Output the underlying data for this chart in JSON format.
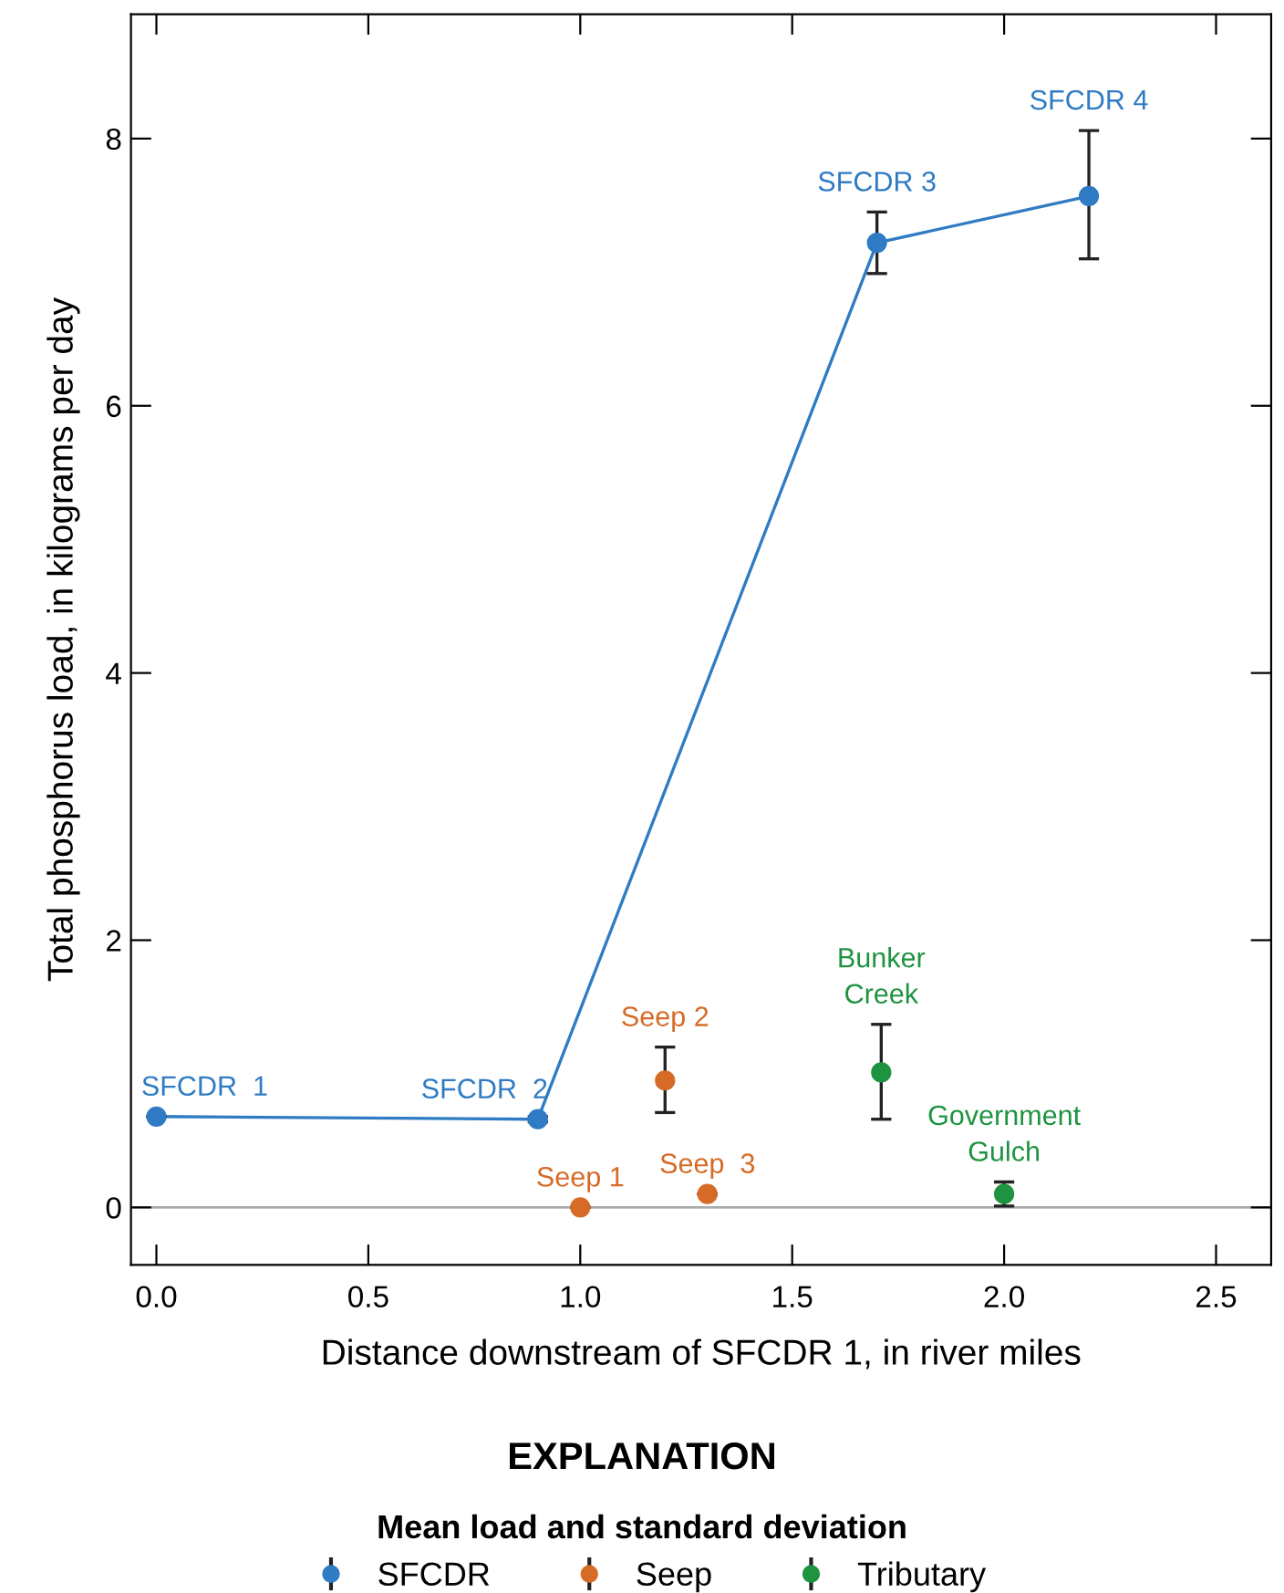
{
  "chart_data": {
    "type": "scatter",
    "xlabel": "Distance downstream of SFCDR 1, in river miles",
    "ylabel": "Total phosphorus load, in kilograms per day",
    "legend_title": "Mean load and standard deviation",
    "legend": "bottom",
    "grid": false,
    "marker": "circle",
    "xlim": [
      -0.06,
      2.63
    ],
    "xticks": [
      {
        "value": 0,
        "label": "0.0"
      },
      0.5,
      {
        "value": 1,
        "label": "1.0"
      },
      1.5,
      {
        "value": 2,
        "label": "2.0"
      },
      2.5
    ],
    "ylim": [
      -0.43,
      8.93
    ],
    "yticks": [
      0,
      2,
      4,
      6,
      8
    ],
    "ref_lines": [
      {
        "axis": "y",
        "value": 0,
        "color": "#aaaaaa"
      }
    ],
    "series": [
      {
        "name": "SFCDR",
        "type": "line",
        "color": "#2f7bc4",
        "x": [
          0,
          0.9,
          1.7,
          2.2
        ],
        "values": [
          0.68,
          0.66,
          7.22,
          7.57
        ],
        "errors": [
          null,
          [
            0.64,
            0.68
          ],
          [
            6.99,
            7.45
          ],
          [
            7.1,
            8.06
          ]
        ]
      },
      {
        "name": "Seep",
        "color": "#d66a27",
        "x": [
          1.0,
          1.2,
          1.3
        ],
        "values": [
          0,
          0.95,
          0.1
        ],
        "errors": [
          null,
          [
            0.71,
            1.2
          ],
          null
        ]
      },
      {
        "name": "Tributary",
        "color": "#1e9340",
        "x": [
          1.71,
          2.0
        ],
        "values": [
          1.01,
          0.1
        ],
        "errors": [
          [
            0.66,
            1.37
          ],
          [
            0.01,
            0.19
          ]
        ]
      }
    ],
    "annotations": [
      {
        "text": "SFCDR  1",
        "x": 0,
        "y": 0.68
      },
      {
        "text": "SFCDR  2",
        "x": 0.9,
        "y": 0.66
      },
      {
        "text": "SFCDR 3",
        "x": 1.7,
        "y": 7.45
      },
      {
        "text": "SFCDR 4",
        "x": 2.2,
        "y": 8.06
      },
      {
        "text": "Seep 1",
        "x": 1.0,
        "y": 0
      },
      {
        "text": "Seep 2",
        "x": 1.2,
        "y": 1.2
      },
      {
        "text": "Seep  3",
        "x": 1.3,
        "y": 0.1
      },
      {
        "text": "Bunker\nCreek",
        "x": 1.71,
        "y": 1.37
      },
      {
        "text": "Government\nGulch",
        "x": 2.0,
        "y": 0.19
      },
      "EXPLANATION"
    ]
  }
}
